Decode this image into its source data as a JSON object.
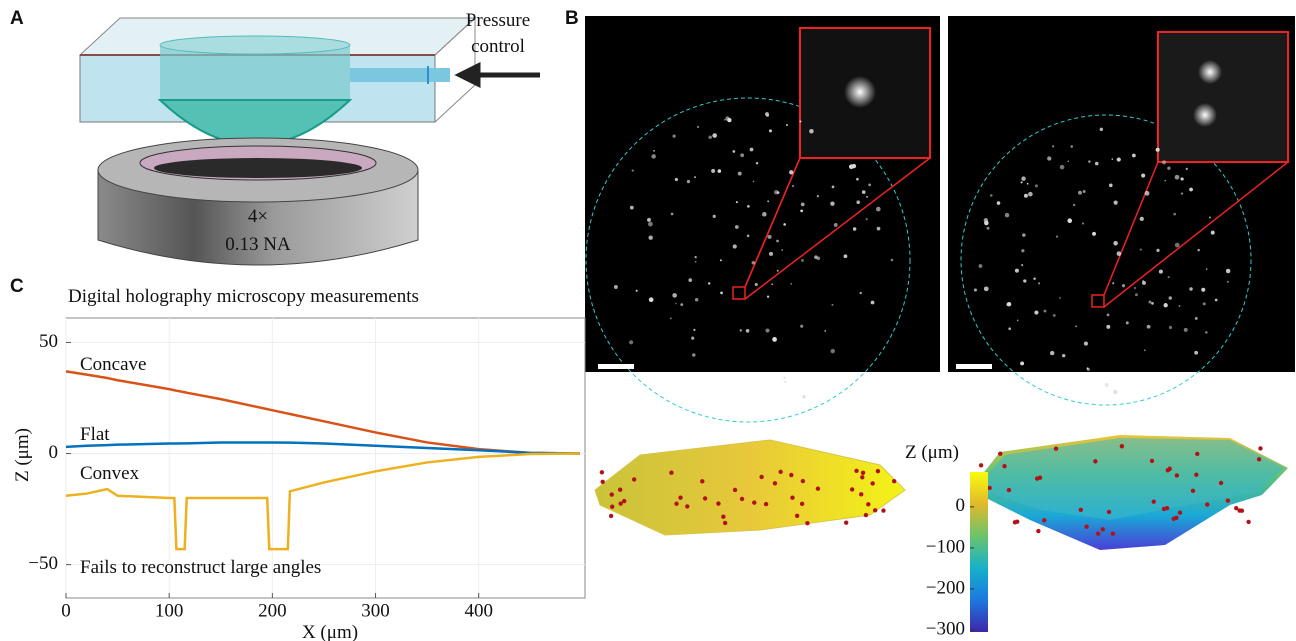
{
  "panel_labels": [
    "A",
    "B",
    "C"
  ],
  "figure_a": {
    "pressure_label": [
      "Pressure",
      "control"
    ],
    "objective_label": [
      "4×",
      "0.13 NA"
    ]
  },
  "chart_data": {
    "type": "line",
    "title": "Digital holography microscopy measurements",
    "x_label": "X (μm)",
    "y_label": "Z (μm)",
    "annotations": [
      "Concave",
      "Flat",
      "Convex",
      "Fails to reconstruct large angles"
    ],
    "x": [
      0,
      20,
      40,
      50,
      100,
      105,
      107,
      115,
      117,
      150,
      195,
      197,
      215,
      217,
      250,
      300,
      350,
      400,
      450,
      498
    ],
    "series": [
      {
        "name": "Concave",
        "color": "#d95319",
        "values": [
          37,
          35.5,
          34,
          33,
          29,
          28.5,
          28.3,
          27.6,
          27.4,
          24.5,
          20,
          19.8,
          18,
          17.8,
          14.5,
          9.5,
          5,
          2,
          0.3,
          0
        ]
      },
      {
        "name": "Flat",
        "color": "#0072bd",
        "values": [
          3,
          3.5,
          3.8,
          4,
          4.5,
          4.5,
          4.5,
          4.6,
          4.6,
          5,
          5,
          5,
          4.9,
          4.9,
          4.5,
          3.5,
          2.5,
          1.5,
          0.3,
          0
        ]
      },
      {
        "name": "Convex",
        "color": "#edb120",
        "values": [
          -19,
          -18,
          -16,
          -19,
          -20,
          -20,
          -43,
          -43,
          -20,
          -20,
          -20,
          -43,
          -43,
          -17,
          -13,
          -8,
          -4,
          -1.5,
          -0.2,
          0
        ]
      }
    ],
    "xlim": [
      0,
      503
    ],
    "ylim": [
      -65,
      61
    ],
    "xticks": [
      0,
      100,
      200,
      300,
      400
    ],
    "yticks": [
      {
        "value": -50,
        "label": "−50"
      },
      0,
      50
    ],
    "grid": true
  },
  "colorbar": {
    "label": "Z (μm)",
    "clim": [
      -305,
      85
    ],
    "ticks": [
      0,
      {
        "value": -100,
        "label": "−100"
      },
      {
        "value": -200,
        "label": "−200"
      },
      {
        "value": -300,
        "label": "−300"
      }
    ]
  }
}
